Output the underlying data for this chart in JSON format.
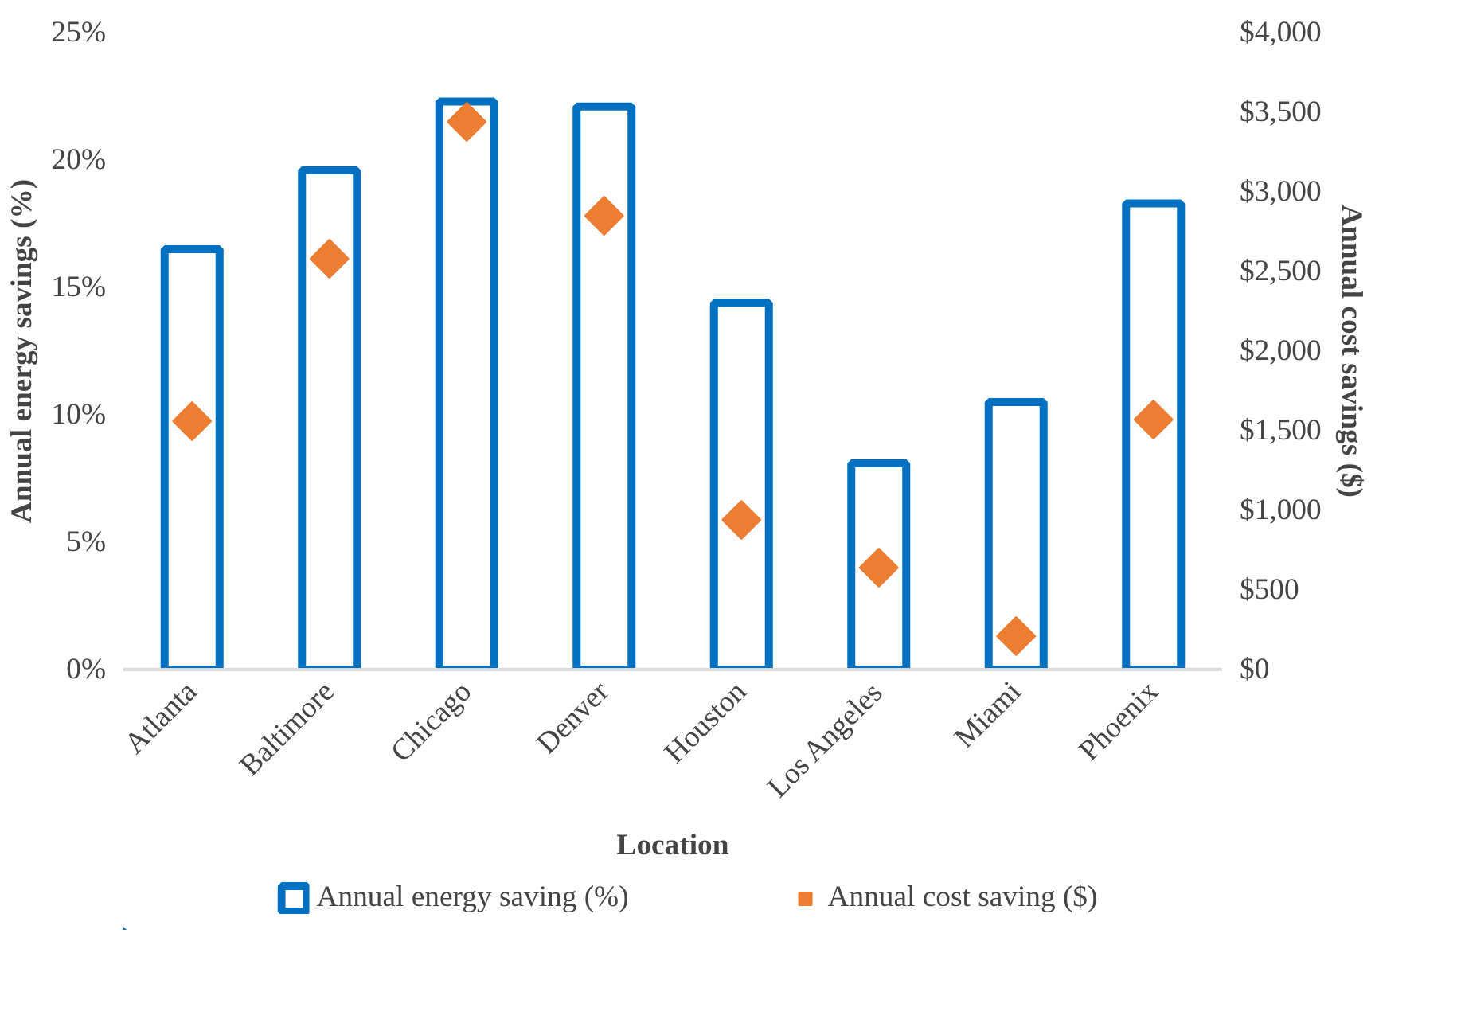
{
  "chart_data": {
    "type": "bar",
    "xlabel": "Location",
    "ylabel": "Annual energy savings (%)",
    "y2label": "Annual cost savings ($)",
    "categories": [
      "Atlanta",
      "Baltimore",
      "Chicago",
      "Denver",
      "Houston",
      "Los Angeles",
      "Miami",
      "Phoenix"
    ],
    "series": [
      {
        "name": "Annual energy saving (%)",
        "color": "#0070c0",
        "values": [
          16.5,
          19.6,
          22.3,
          22.1,
          14.4,
          8.1,
          10.5,
          18.3
        ]
      },
      {
        "name": "Annual cost saving ($)",
        "type": "scatter",
        "axis": "y2",
        "marker": "diamond",
        "color": "#ed7d31",
        "values": [
          1560,
          2580,
          3440,
          2850,
          940,
          640,
          210,
          1570
        ]
      }
    ],
    "ylim": [
      0,
      25
    ],
    "yticks": [
      {
        "value": 0,
        "label": "0%"
      },
      {
        "value": 5,
        "label": "5%"
      },
      {
        "value": 10,
        "label": "10%"
      },
      {
        "value": 15,
        "label": "15%"
      },
      {
        "value": 20,
        "label": "20%"
      },
      {
        "value": 25,
        "label": "25%"
      }
    ],
    "y2lim": [
      0,
      4000
    ],
    "y2ticks": [
      {
        "value": 0,
        "label": "$0"
      },
      {
        "value": 500,
        "label": "$500"
      },
      {
        "value": 1000,
        "label": "$1,000"
      },
      {
        "value": 1500,
        "label": "$1,500"
      },
      {
        "value": 2000,
        "label": "$2,000"
      },
      {
        "value": 2500,
        "label": "$2,500"
      },
      {
        "value": 3000,
        "label": "$3,000"
      },
      {
        "value": 3500,
        "label": "$3,500"
      },
      {
        "value": 4000,
        "label": "$4,000"
      }
    ],
    "grid": false,
    "legend": "bottom"
  }
}
